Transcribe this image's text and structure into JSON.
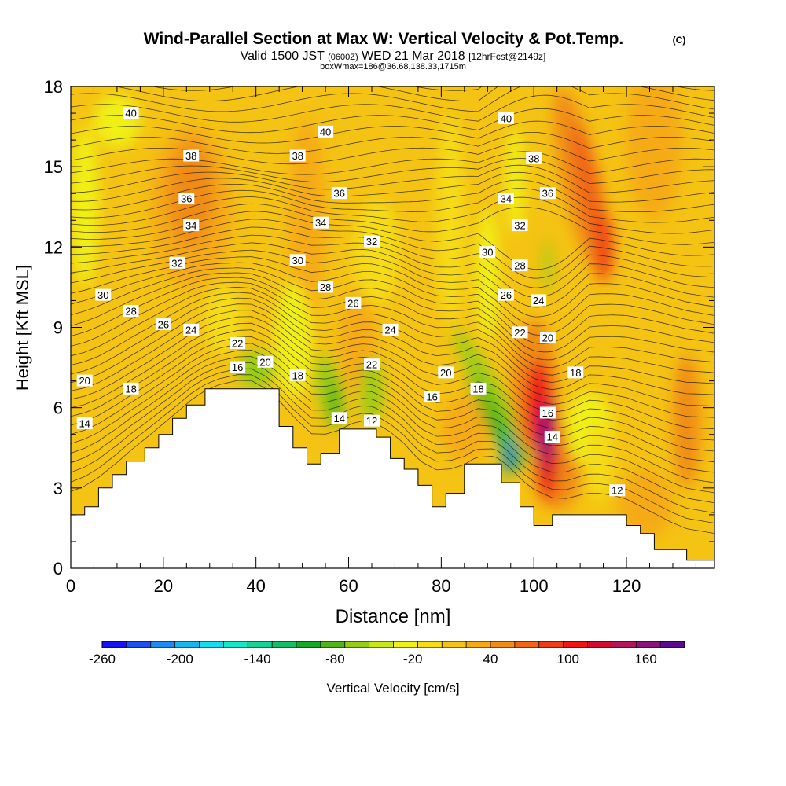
{
  "chart_data": {
    "type": "heatmap",
    "title": "Wind-Parallel Section at Max W: Vertical Velocity & Pot.Temp.",
    "title_tag": "(C)",
    "subtitle_valid": "Valid 1500 JST",
    "subtitle_utc": "(0600Z)",
    "subtitle_date": "WED 21 Mar 2018",
    "subtitle_fcst": "[12hrFcst@2149z]",
    "subtitle2": "boxWmax=186@36.68,138.33,1715m",
    "xlabel": "Distance [nm]",
    "ylabel": "Height [Kft MSL]",
    "xlim": [
      0,
      139
    ],
    "ylim": [
      0,
      18
    ],
    "xticks": [
      0,
      20,
      40,
      60,
      80,
      100,
      120
    ],
    "yticks": [
      0,
      3,
      6,
      9,
      12,
      15,
      18
    ],
    "colorbar": {
      "label": "Vertical Velocity [cm/s]",
      "range": [
        -260,
        190
      ],
      "tick_labels": [
        -260,
        -200,
        -140,
        -80,
        -20,
        40,
        100,
        160
      ],
      "colors": [
        "#1414f0",
        "#1c50f0",
        "#1c8cf0",
        "#14b8f0",
        "#14dcf0",
        "#14e6c8",
        "#14d296",
        "#14be64",
        "#14aa28",
        "#50b414",
        "#96cd14",
        "#c8e614",
        "#f0f014",
        "#f5dc14",
        "#f5c314",
        "#f5aa14",
        "#f08c14",
        "#f06414",
        "#f03c14",
        "#f01414",
        "#d20a2d",
        "#b4145a",
        "#8c1478",
        "#5a0a8c"
      ]
    },
    "theta_contour_labels": [
      {
        "value": "40",
        "x": 13,
        "y": 17.0
      },
      {
        "value": "40",
        "x": 55,
        "y": 16.3
      },
      {
        "value": "40",
        "x": 94,
        "y": 16.8
      },
      {
        "value": "38",
        "x": 26,
        "y": 15.4
      },
      {
        "value": "38",
        "x": 49,
        "y": 15.4
      },
      {
        "value": "38",
        "x": 100,
        "y": 15.3
      },
      {
        "value": "36",
        "x": 25,
        "y": 13.8
      },
      {
        "value": "36",
        "x": 58,
        "y": 14.0
      },
      {
        "value": "36",
        "x": 103,
        "y": 14.0
      },
      {
        "value": "34",
        "x": 26,
        "y": 12.8
      },
      {
        "value": "34",
        "x": 54,
        "y": 12.9
      },
      {
        "value": "34",
        "x": 94,
        "y": 13.8
      },
      {
        "value": "32",
        "x": 23,
        "y": 11.4
      },
      {
        "value": "32",
        "x": 65,
        "y": 12.2
      },
      {
        "value": "32",
        "x": 97,
        "y": 12.8
      },
      {
        "value": "30",
        "x": 7,
        "y": 10.2
      },
      {
        "value": "30",
        "x": 49,
        "y": 11.5
      },
      {
        "value": "30",
        "x": 90,
        "y": 11.8
      },
      {
        "value": "28",
        "x": 13,
        "y": 9.6
      },
      {
        "value": "28",
        "x": 55,
        "y": 10.5
      },
      {
        "value": "28",
        "x": 97,
        "y": 11.3
      },
      {
        "value": "26",
        "x": 20,
        "y": 9.1
      },
      {
        "value": "26",
        "x": 61,
        "y": 9.9
      },
      {
        "value": "26",
        "x": 94,
        "y": 10.2
      },
      {
        "value": "24",
        "x": 26,
        "y": 8.9
      },
      {
        "value": "24",
        "x": 69,
        "y": 8.9
      },
      {
        "value": "24",
        "x": 101,
        "y": 10.0
      },
      {
        "value": "22",
        "x": 36,
        "y": 8.4
      },
      {
        "value": "22",
        "x": 65,
        "y": 7.6
      },
      {
        "value": "22",
        "x": 97,
        "y": 8.8
      },
      {
        "value": "20",
        "x": 3,
        "y": 7.0
      },
      {
        "value": "20",
        "x": 42,
        "y": 7.7
      },
      {
        "value": "20",
        "x": 81,
        "y": 7.3
      },
      {
        "value": "20",
        "x": 103,
        "y": 8.6
      },
      {
        "value": "18",
        "x": 13,
        "y": 6.7
      },
      {
        "value": "18",
        "x": 49,
        "y": 7.2
      },
      {
        "value": "18",
        "x": 88,
        "y": 6.7
      },
      {
        "value": "18",
        "x": 109,
        "y": 7.3
      },
      {
        "value": "16",
        "x": 36,
        "y": 7.5
      },
      {
        "value": "16",
        "x": 78,
        "y": 6.4
      },
      {
        "value": "16",
        "x": 103,
        "y": 5.8
      },
      {
        "value": "14",
        "x": 3,
        "y": 5.4
      },
      {
        "value": "14",
        "x": 58,
        "y": 5.6
      },
      {
        "value": "14",
        "x": 104,
        "y": 4.9
      },
      {
        "value": "12",
        "x": 65,
        "y": 5.5
      },
      {
        "value": "12",
        "x": 118,
        "y": 2.9
      }
    ],
    "terrain_profile": [
      [
        0,
        2.0
      ],
      [
        3,
        2.0
      ],
      [
        3,
        2.3
      ],
      [
        6,
        2.3
      ],
      [
        6,
        3.0
      ],
      [
        9,
        3.0
      ],
      [
        9,
        3.5
      ],
      [
        12,
        3.5
      ],
      [
        12,
        4.0
      ],
      [
        16,
        4.0
      ],
      [
        16,
        4.5
      ],
      [
        19,
        4.5
      ],
      [
        19,
        5.0
      ],
      [
        22,
        5.0
      ],
      [
        22,
        5.6
      ],
      [
        25,
        5.6
      ],
      [
        25,
        6.1
      ],
      [
        29,
        6.1
      ],
      [
        29,
        6.7
      ],
      [
        45,
        6.7
      ],
      [
        45,
        5.3
      ],
      [
        48,
        5.3
      ],
      [
        48,
        4.5
      ],
      [
        51,
        4.5
      ],
      [
        51,
        3.9
      ],
      [
        54,
        3.9
      ],
      [
        54,
        4.3
      ],
      [
        58,
        4.3
      ],
      [
        58,
        5.2
      ],
      [
        66,
        5.2
      ],
      [
        66,
        4.9
      ],
      [
        69,
        4.9
      ],
      [
        69,
        4.1
      ],
      [
        72,
        4.1
      ],
      [
        72,
        3.7
      ],
      [
        75,
        3.7
      ],
      [
        75,
        3.1
      ],
      [
        78,
        3.1
      ],
      [
        78,
        2.3
      ],
      [
        81,
        2.3
      ],
      [
        81,
        2.8
      ],
      [
        85,
        2.8
      ],
      [
        85,
        3.9
      ],
      [
        93,
        3.9
      ],
      [
        93,
        3.2
      ],
      [
        97,
        3.2
      ],
      [
        97,
        2.3
      ],
      [
        100,
        2.3
      ],
      [
        100,
        1.6
      ],
      [
        104,
        1.6
      ],
      [
        104,
        2.0
      ],
      [
        120,
        2.0
      ],
      [
        120,
        1.6
      ],
      [
        123,
        1.6
      ],
      [
        123,
        1.3
      ],
      [
        126,
        1.3
      ],
      [
        126,
        0.7
      ],
      [
        133,
        0.7
      ],
      [
        133,
        0.3
      ],
      [
        139,
        0.3
      ]
    ]
  }
}
